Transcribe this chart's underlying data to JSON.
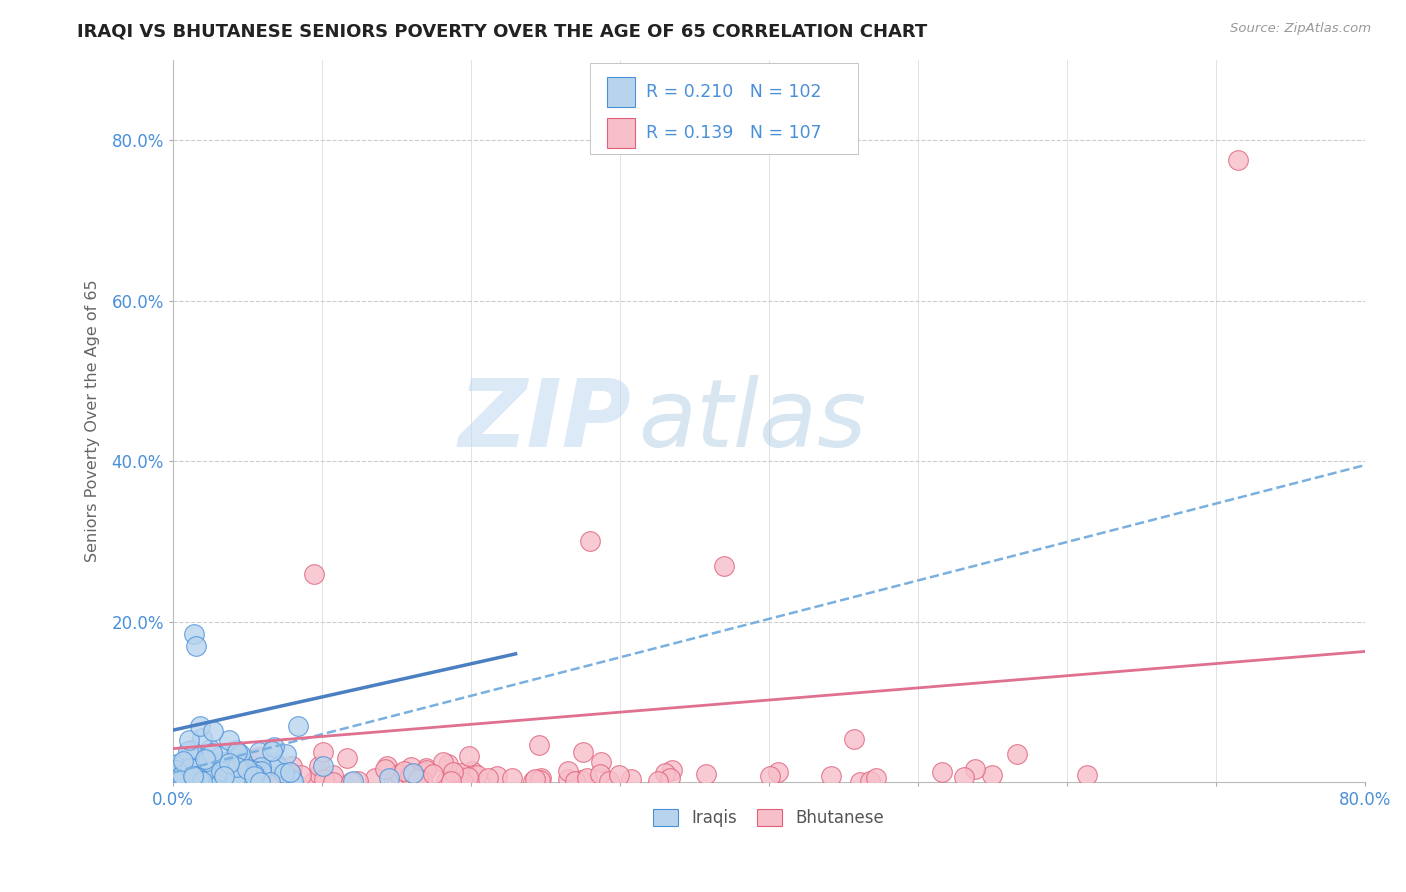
{
  "title": "IRAQI VS BHUTANESE SENIORS POVERTY OVER THE AGE OF 65 CORRELATION CHART",
  "source": "Source: ZipAtlas.com",
  "ylabel": "Seniors Poverty Over the Age of 65",
  "xlim": [
    0.0,
    0.8
  ],
  "ylim": [
    0.0,
    0.9
  ],
  "xticks": [
    0.0,
    0.1,
    0.2,
    0.3,
    0.4,
    0.5,
    0.6,
    0.7,
    0.8
  ],
  "xticklabels": [
    "0.0%",
    "",
    "",
    "",
    "",
    "",
    "",
    "",
    "80.0%"
  ],
  "ytick_positions": [
    0.2,
    0.4,
    0.6,
    0.8
  ],
  "ytick_labels": [
    "20.0%",
    "40.0%",
    "60.0%",
    "80.0%"
  ],
  "R_iraqi": 0.21,
  "N_iraqi": 102,
  "R_bhutanese": 0.139,
  "N_bhutanese": 107,
  "iraqi_fill_color": "#b8d4ed",
  "iraqi_edge_color": "#4a90d9",
  "bhutanese_fill_color": "#f7bfca",
  "bhutanese_edge_color": "#e0607a",
  "iraqi_solid_line_color": "#4a7fc1",
  "iraqi_dashed_line_color": "#7ab0e0",
  "bhutanese_solid_line_color": "#e07090",
  "watermark_zip": "#c5d8ee",
  "watermark_atlas": "#a8c8e8",
  "legend_iraqi": "Iraqis",
  "legend_bhutanese": "Bhutanese",
  "background_color": "#ffffff",
  "grid_color": "#cccccc",
  "title_color": "#222222",
  "axis_label_color": "#666666",
  "tick_label_color": "#4a90d9",
  "stats_text_color": "#4a90d9"
}
